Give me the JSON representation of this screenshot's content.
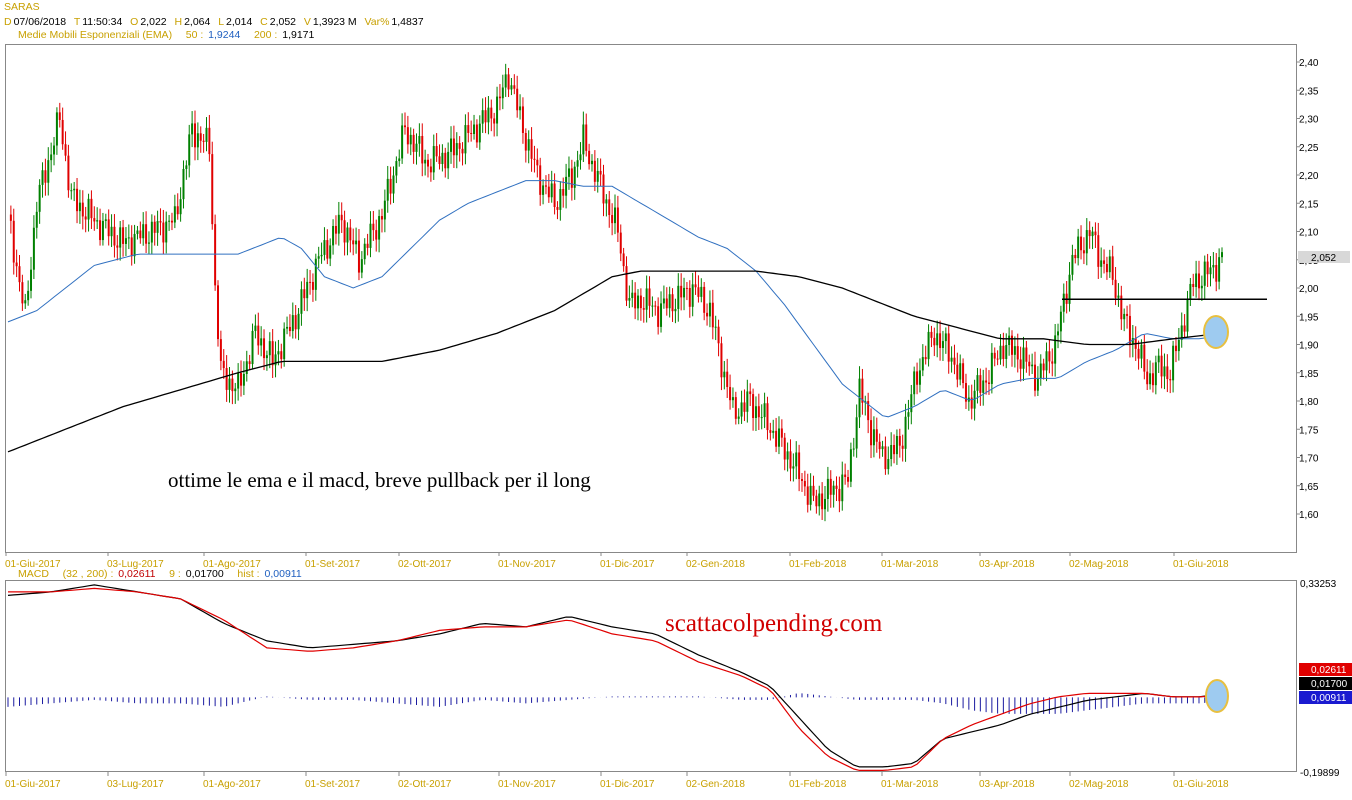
{
  "header": {
    "symbol": "SARAS",
    "d_label": "D",
    "date": "07/06/2018",
    "t_label": "T",
    "time": "11:50:34",
    "o_label": "O",
    "open": "2,022",
    "h_label": "H",
    "high": "2,064",
    "l_label": "L",
    "low": "2,014",
    "c_label": "C",
    "close": "2,052",
    "v_label": "V",
    "volume": "1,3923 M",
    "var_label": "Var%",
    "var": "1,4837",
    "ema_label": "Medie Mobili Esponenziali (EMA)",
    "ema50_label": "50 :",
    "ema50_value": "1,9244",
    "ema200_label": "200 :",
    "ema200_value": "1,9171"
  },
  "macd_header": {
    "label": "MACD",
    "params": "(32 , 200) :",
    "value": "0,02611",
    "signal_label": "9 :",
    "signal": "0,01700",
    "hist_label": "hist :",
    "hist": "0,00911"
  },
  "annotations": {
    "comment": "ottime le ema e il macd, breve pullback per il long",
    "watermark": "scattacolpending.com"
  },
  "colors": {
    "up": "#008000",
    "down": "#e00000",
    "ema50": "#3070c0",
    "ema200": "#000000",
    "macd": "#000000",
    "signal": "#e00000",
    "hist": "#1a1aa0",
    "gold": "#c8a000",
    "circle_fill": "#9ecbf0",
    "circle_stroke": "#e8c040"
  },
  "chart_data": [
    {
      "type": "candlestick",
      "title": "SARAS",
      "y_ticks": [
        "2,40",
        "2,35",
        "2,30",
        "2,25",
        "2,20",
        "2,15",
        "2,10",
        "2,05",
        "2,00",
        "1,95",
        "1,90",
        "1,85",
        "1,80",
        "1,75",
        "1,70",
        "1,65",
        "1,60"
      ],
      "ylim": [
        1.575,
        2.425
      ],
      "x_ticks": [
        "01-Giu-2017",
        "03-Lug-2017",
        "01-Ago-2017",
        "01-Set-2017",
        "02-Ott-2017",
        "01-Nov-2017",
        "01-Dic-2017",
        "02-Gen-2018",
        "01-Feb-2018",
        "01-Mar-2018",
        "03-Apr-2018",
        "02-Mag-2018",
        "01-Giu-2018"
      ],
      "last_price_label": "2,052",
      "resistance_level": 1.98,
      "series": [
        {
          "name": "EMA 50",
          "points": [
            [
              0,
              1.94
            ],
            [
              10,
              1.96
            ],
            [
              20,
              2.0
            ],
            [
              30,
              2.04
            ],
            [
              45,
              2.06
            ],
            [
              60,
              2.06
            ],
            [
              80,
              2.06
            ],
            [
              95,
              2.09
            ],
            [
              102,
              2.07
            ],
            [
              110,
              2.02
            ],
            [
              120,
              2.0
            ],
            [
              130,
              2.02
            ],
            [
              140,
              2.07
            ],
            [
              150,
              2.12
            ],
            [
              160,
              2.15
            ],
            [
              170,
              2.17
            ],
            [
              180,
              2.19
            ],
            [
              190,
              2.19
            ],
            [
              200,
              2.18
            ],
            [
              210,
              2.18
            ],
            [
              220,
              2.15
            ],
            [
              230,
              2.12
            ],
            [
              240,
              2.09
            ],
            [
              250,
              2.07
            ],
            [
              260,
              2.03
            ],
            [
              270,
              1.97
            ],
            [
              280,
              1.9
            ],
            [
              290,
              1.83
            ],
            [
              300,
              1.79
            ],
            [
              305,
              1.77
            ],
            [
              315,
              1.79
            ],
            [
              325,
              1.82
            ],
            [
              335,
              1.8
            ],
            [
              345,
              1.83
            ],
            [
              355,
              1.84
            ],
            [
              365,
              1.84
            ],
            [
              375,
              1.87
            ],
            [
              385,
              1.89
            ],
            [
              395,
              1.92
            ],
            [
              405,
              1.91
            ],
            [
              415,
              1.91
            ],
            [
              422,
              1.92
            ]
          ]
        },
        {
          "name": "EMA 200",
          "points": [
            [
              0,
              1.71
            ],
            [
              20,
              1.75
            ],
            [
              40,
              1.79
            ],
            [
              60,
              1.82
            ],
            [
              80,
              1.85
            ],
            [
              95,
              1.87
            ],
            [
              110,
              1.87
            ],
            [
              130,
              1.87
            ],
            [
              150,
              1.89
            ],
            [
              170,
              1.92
            ],
            [
              190,
              1.96
            ],
            [
              200,
              1.99
            ],
            [
              210,
              2.02
            ],
            [
              220,
              2.03
            ],
            [
              240,
              2.03
            ],
            [
              260,
              2.03
            ],
            [
              275,
              2.02
            ],
            [
              290,
              2.0
            ],
            [
              300,
              1.98
            ],
            [
              315,
              1.95
            ],
            [
              330,
              1.93
            ],
            [
              345,
              1.91
            ],
            [
              360,
              1.91
            ],
            [
              375,
              1.9
            ],
            [
              390,
              1.9
            ],
            [
              405,
              1.91
            ],
            [
              422,
              1.92
            ]
          ]
        }
      ]
    },
    {
      "type": "macd",
      "title": "MACD (32 , 200)",
      "ylim": [
        -0.19899,
        0.33253
      ],
      "y_labels": [
        "0,33253",
        "-0,19899"
      ],
      "value_labels": [
        "0,02611",
        "0,01700",
        "0,00911"
      ],
      "x_ticks": [
        "01-Giu-2017",
        "03-Lug-2017",
        "01-Ago-2017",
        "01-Set-2017",
        "02-Ott-2017",
        "01-Nov-2017",
        "01-Dic-2017",
        "02-Gen-2018",
        "01-Feb-2018",
        "01-Mar-2018",
        "03-Apr-2018",
        "02-Mag-2018",
        "01-Giu-2018"
      ],
      "series": [
        {
          "name": "MACD",
          "points": [
            [
              0,
              0.3
            ],
            [
              15,
              0.31
            ],
            [
              30,
              0.33
            ],
            [
              45,
              0.31
            ],
            [
              60,
              0.29
            ],
            [
              75,
              0.22
            ],
            [
              90,
              0.17
            ],
            [
              105,
              0.15
            ],
            [
              120,
              0.16
            ],
            [
              135,
              0.17
            ],
            [
              150,
              0.19
            ],
            [
              165,
              0.22
            ],
            [
              180,
              0.21
            ],
            [
              195,
              0.24
            ],
            [
              210,
              0.21
            ],
            [
              225,
              0.19
            ],
            [
              240,
              0.13
            ],
            [
              255,
              0.08
            ],
            [
              265,
              0.04
            ],
            [
              275,
              -0.05
            ],
            [
              285,
              -0.14
            ],
            [
              295,
              -0.19
            ],
            [
              305,
              -0.19
            ],
            [
              315,
              -0.18
            ],
            [
              325,
              -0.11
            ],
            [
              335,
              -0.09
            ],
            [
              345,
              -0.07
            ],
            [
              355,
              -0.04
            ],
            [
              365,
              -0.02
            ],
            [
              375,
              0.0
            ],
            [
              385,
              0.01
            ],
            [
              395,
              0.02
            ],
            [
              405,
              0.01
            ],
            [
              415,
              0.01
            ],
            [
              422,
              0.02611
            ]
          ]
        },
        {
          "name": "Signal",
          "points": [
            [
              0,
              0.31
            ],
            [
              15,
              0.31
            ],
            [
              30,
              0.32
            ],
            [
              45,
              0.31
            ],
            [
              60,
              0.29
            ],
            [
              75,
              0.23
            ],
            [
              90,
              0.15
            ],
            [
              105,
              0.14
            ],
            [
              120,
              0.15
            ],
            [
              135,
              0.17
            ],
            [
              150,
              0.2
            ],
            [
              165,
              0.21
            ],
            [
              180,
              0.21
            ],
            [
              195,
              0.23
            ],
            [
              210,
              0.19
            ],
            [
              225,
              0.17
            ],
            [
              240,
              0.11
            ],
            [
              255,
              0.07
            ],
            [
              265,
              0.03
            ],
            [
              275,
              -0.08
            ],
            [
              285,
              -0.16
            ],
            [
              295,
              -0.2
            ],
            [
              305,
              -0.2
            ],
            [
              315,
              -0.19
            ],
            [
              325,
              -0.11
            ],
            [
              335,
              -0.07
            ],
            [
              345,
              -0.04
            ],
            [
              355,
              -0.01
            ],
            [
              365,
              0.01
            ],
            [
              375,
              0.02
            ],
            [
              385,
              0.02
            ],
            [
              395,
              0.02
            ],
            [
              405,
              0.01
            ],
            [
              415,
              0.01
            ],
            [
              422,
              0.017
            ]
          ]
        }
      ]
    }
  ]
}
